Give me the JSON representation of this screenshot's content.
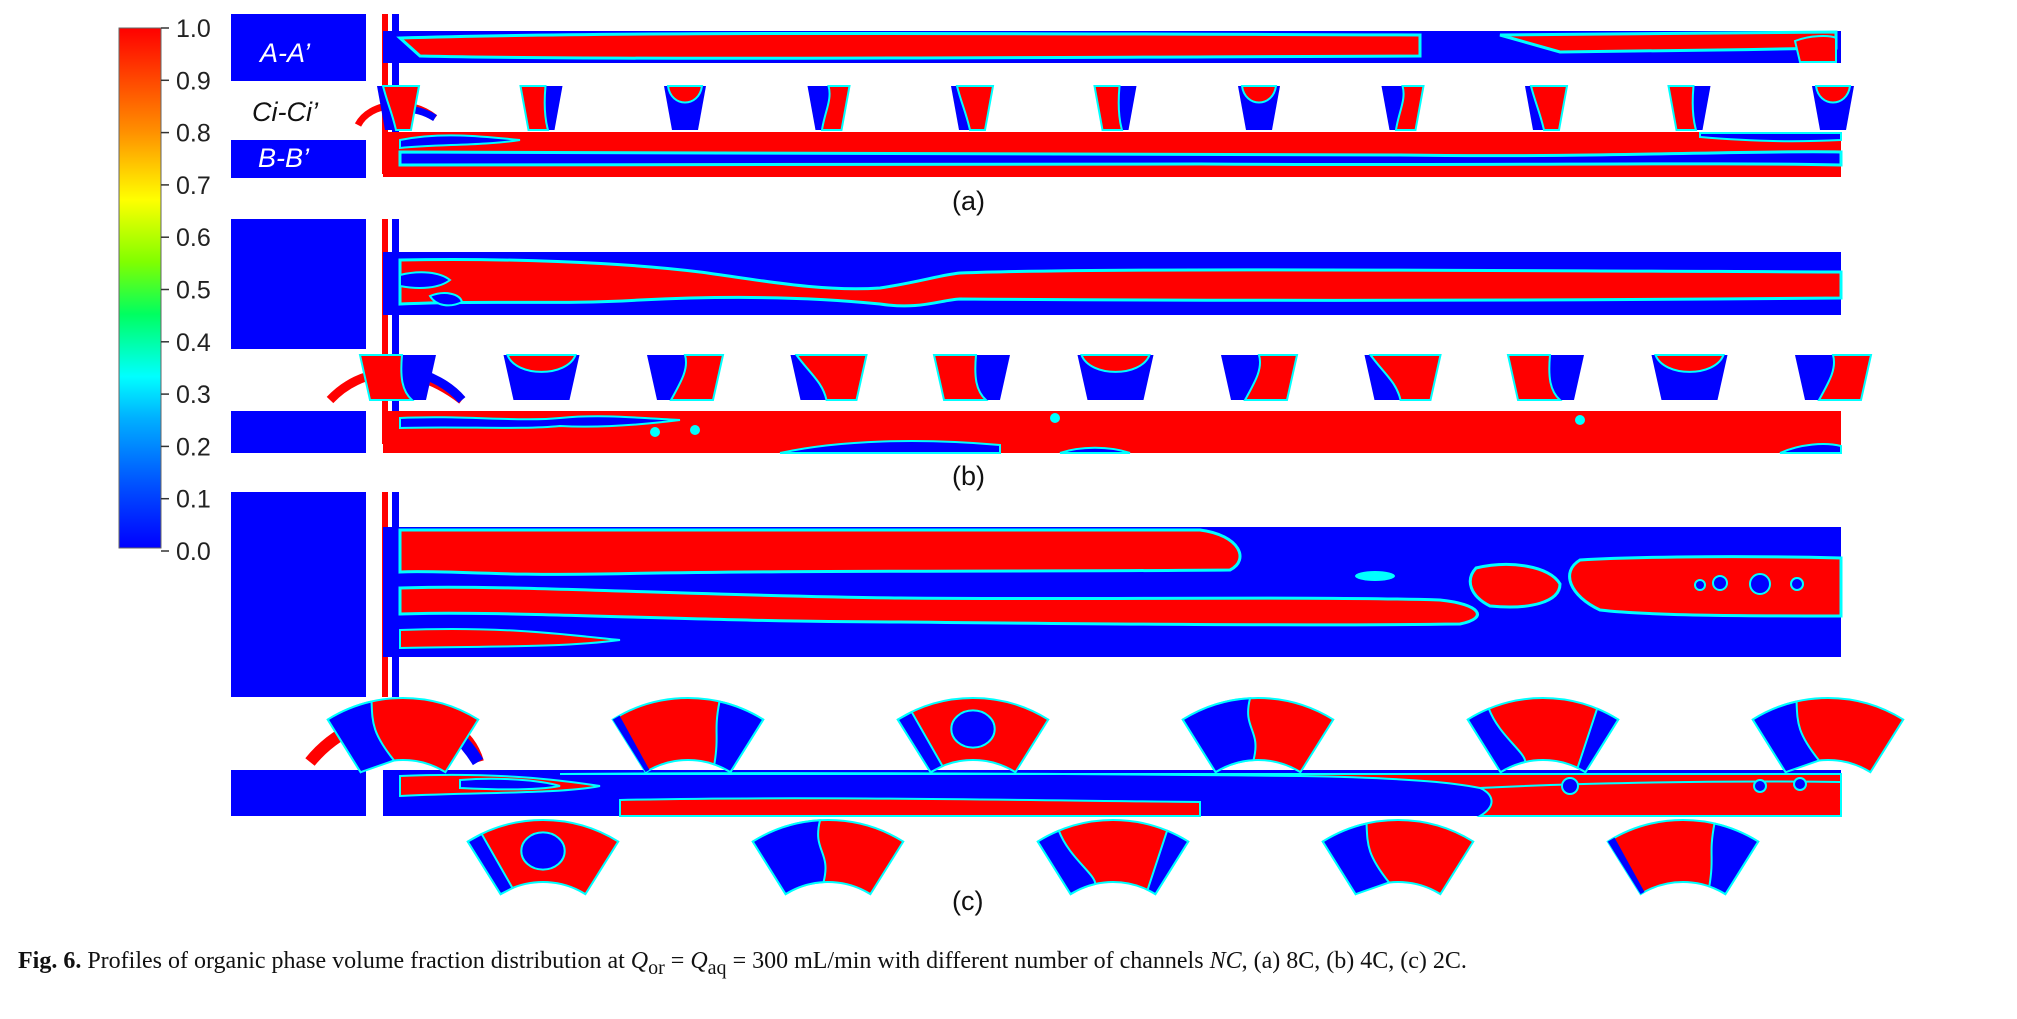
{
  "colorbar": {
    "ticks": [
      "1.0",
      "0.9",
      "0.8",
      "0.7",
      "0.6",
      "0.5",
      "0.4",
      "0.3",
      "0.2",
      "0.1",
      "0.0"
    ],
    "colors": [
      "#0000ff",
      "#00a0ff",
      "#00ffff",
      "#00ff40",
      "#c0ff00",
      "#ffff00",
      "#ff8000",
      "#ff0000"
    ]
  },
  "panels": {
    "a": {
      "label": "(a)",
      "top_label": "A-A’",
      "mid_label": "Ci-Ci’",
      "bot_label": "B-B’",
      "n_cross": 11
    },
    "b": {
      "label": "(b)",
      "n_cross": 11
    },
    "c": {
      "label": "(c)",
      "n_cross_top": 6,
      "n_cross_bottom": 5
    }
  },
  "phase_colors": {
    "organic": "#ff0000",
    "aqueous": "#0000ff",
    "interface": "#00ffff"
  },
  "caption": {
    "fig_label": "Fig. 6.",
    "text_1": " Profiles of organic phase volume fraction distribution at ",
    "q_or": "Q",
    "q_or_sub": "or",
    "eq": " = ",
    "q_aq": "Q",
    "q_aq_sub": "aq",
    "text_2": " = 300 mL/min with different number of channels ",
    "nc": "NC",
    "text_3": ", (a) 8C, (b) 4C, (c) 2C."
  }
}
